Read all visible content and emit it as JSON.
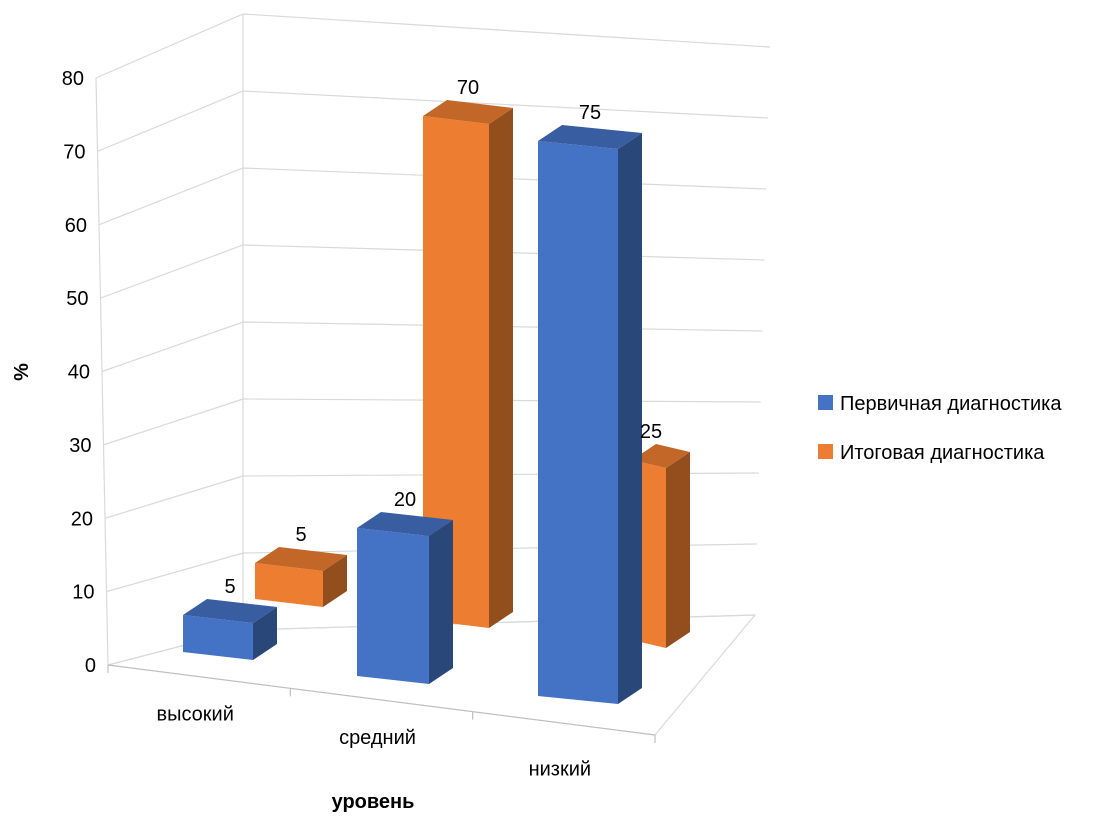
{
  "chart_data": {
    "type": "bar",
    "categories": [
      "высокий",
      "средний",
      "низкий"
    ],
    "series": [
      {
        "name": "Первичная диагностика",
        "values": [
          5,
          20,
          75
        ],
        "color": "#4472C4"
      },
      {
        "name": "Итоговая диагностика",
        "values": [
          5,
          70,
          25
        ],
        "color": "#ED7D31"
      }
    ],
    "xlabel": "уровень",
    "ylabel": "%",
    "ylim": [
      0,
      80
    ],
    "yticks": [
      0,
      10,
      20,
      30,
      40,
      50,
      60,
      70,
      80
    ],
    "grid": true,
    "legend_position": "right",
    "style": "3d-column"
  }
}
